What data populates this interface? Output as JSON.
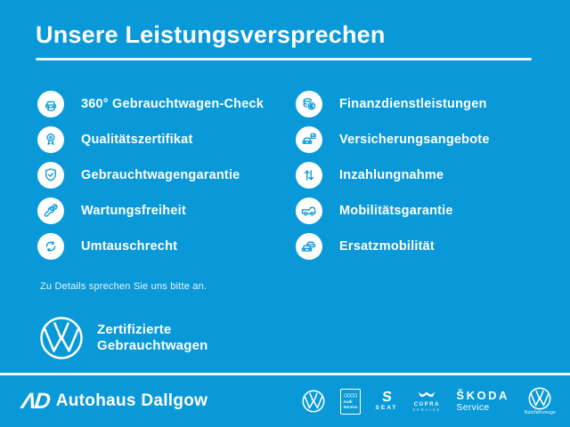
{
  "colors": {
    "background": "#0999d8",
    "text": "#ffffff",
    "icon_on_badge": "#0999d8"
  },
  "header": {
    "title": "Unsere Leistungsversprechen"
  },
  "promises": {
    "left": [
      {
        "icon": "car-360-icon",
        "label": "360° Gebrauchtwagen-Check"
      },
      {
        "icon": "medal-icon",
        "label": "Qualitätszertifikat"
      },
      {
        "icon": "shield-check-icon",
        "label": "Gebrauchtwagengarantie"
      },
      {
        "icon": "wrench-check-icon",
        "label": "Wartungsfreiheit"
      },
      {
        "icon": "exchange-arrows-icon",
        "label": "Umtauschrecht"
      }
    ],
    "right": [
      {
        "icon": "coins-euro-icon",
        "label": "Finanzdienstleistungen"
      },
      {
        "icon": "car-checklist-icon",
        "label": "Versicherungsangebote"
      },
      {
        "icon": "arrows-up-down-icon",
        "label": "Inzahlungnahme"
      },
      {
        "icon": "van-icon",
        "label": "Mobilitätsgarantie"
      },
      {
        "icon": "two-cars-icon",
        "label": "Ersatzmobilität"
      }
    ]
  },
  "note": "Zu Details sprechen Sie uns bitte an.",
  "certified": {
    "line1": "Zertifizierte",
    "line2": "Gebrauchtwagen"
  },
  "footer": {
    "dealer_logo_glyph": "ΛD",
    "dealer_name": "Autohaus Dallgow",
    "brands": {
      "audi": {
        "line1": "Audi",
        "line2": "Service"
      },
      "seat": {
        "glyph": "S",
        "label": "SEAT"
      },
      "cupra": {
        "label": "CUPRA",
        "sub": "SERVICE"
      },
      "skoda": {
        "label": "ŠKODA",
        "sub": "Service"
      },
      "vw_nutzfahrzeuge": {
        "label": "Nutzfahrzeuge"
      }
    }
  }
}
